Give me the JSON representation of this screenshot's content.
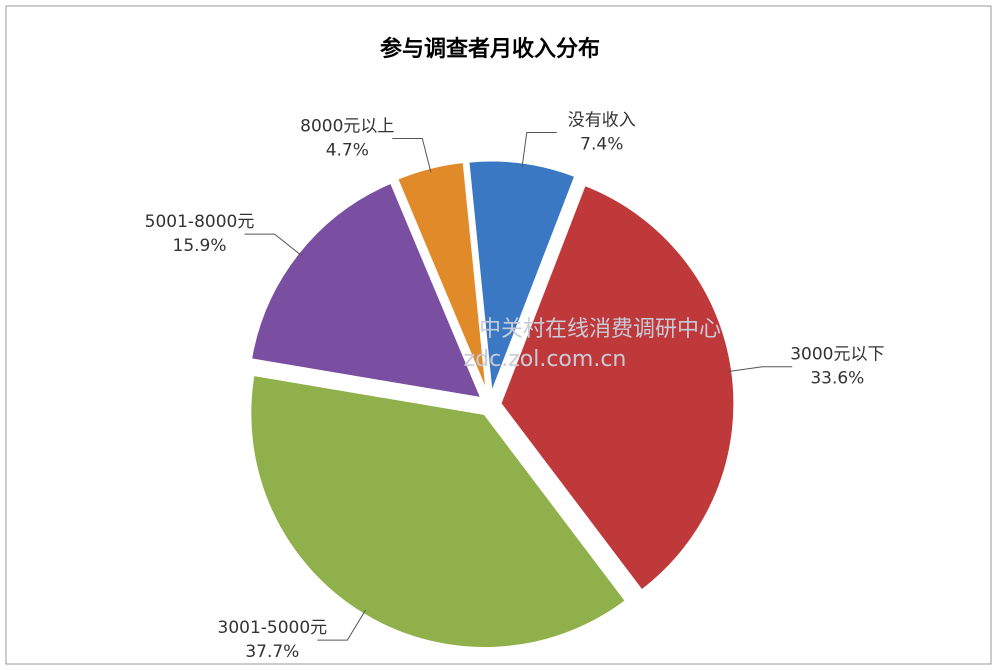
{
  "chart_data": {
    "type": "pie",
    "title": "参与调查者月收入分布",
    "annotations": [
      "中关村在线消费调研中心",
      "zdc.zol.com.cn"
    ],
    "categories": [
      "没有收入",
      "3000元以下",
      "3001-5000元",
      "5001-8000元",
      "8000元以上"
    ],
    "values": [
      7.4,
      33.6,
      37.7,
      15.9,
      4.7
    ],
    "value_labels": [
      "7.4%",
      "33.6%",
      "37.7%",
      "15.9%",
      "4.7%"
    ],
    "colors": [
      "#3a78c4",
      "#c0393a",
      "#8fb04a",
      "#7a4ea0",
      "#e08a2a"
    ]
  }
}
